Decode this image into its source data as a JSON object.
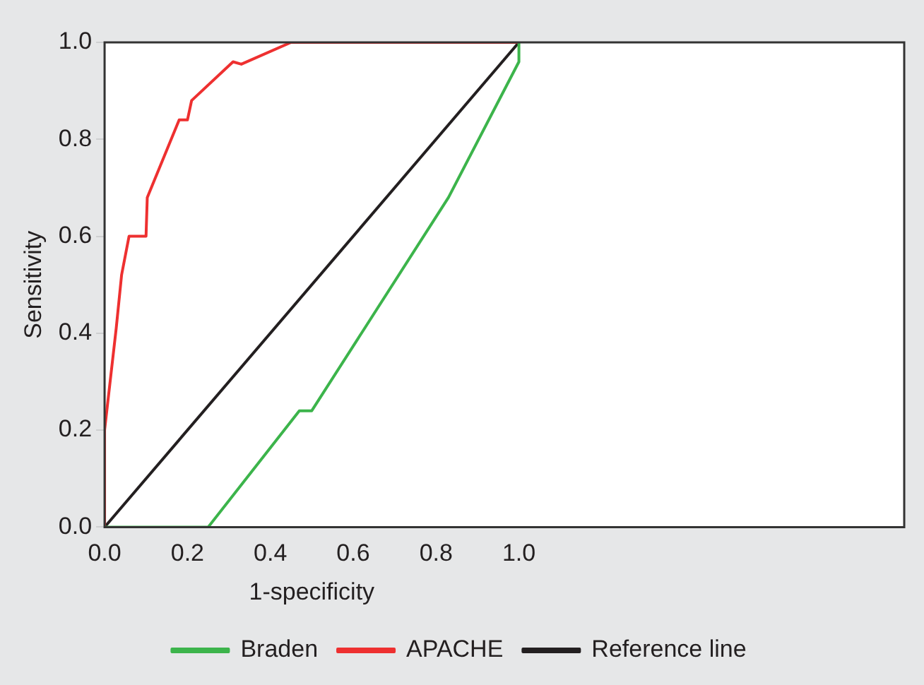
{
  "chart_data": {
    "type": "line",
    "xlabel": "1-specificity",
    "ylabel": "Sensitivity",
    "xlim": [
      0,
      1.93
    ],
    "ylim": [
      0,
      1
    ],
    "xticks": [
      {
        "value": 0,
        "label": "0.0"
      },
      0.2,
      0.4,
      0.6,
      0.8,
      {
        "value": 1,
        "label": "1.0"
      }
    ],
    "yticks": [
      {
        "value": 0,
        "label": "0.0"
      },
      0.2,
      0.4,
      0.6,
      0.8,
      {
        "value": 1,
        "label": "1.0"
      }
    ],
    "grid": false,
    "legend": "bottom",
    "marker": "none",
    "line_style": "solid",
    "series": [
      {
        "name": "Braden",
        "color": "#3cb44b",
        "x": [
          0,
          0.25,
          0.47,
          0.5,
          0.83,
          1,
          1
        ],
        "values": [
          0,
          0,
          0.24,
          0.24,
          0.68,
          0.96,
          1
        ]
      },
      {
        "name": "APACHE",
        "color": "#ee3030",
        "x": [
          0,
          0,
          0.028,
          0.041,
          0.059,
          0.1,
          0.103,
          0.18,
          0.2,
          0.21,
          0.31,
          0.33,
          0.45,
          1
        ],
        "values": [
          0,
          0.2,
          0.41,
          0.52,
          0.6,
          0.6,
          0.68,
          0.84,
          0.84,
          0.88,
          0.96,
          0.955,
          1,
          1
        ]
      },
      {
        "name": "Reference line",
        "color": "#231f20",
        "x": [
          0,
          1
        ],
        "values": [
          0,
          1
        ]
      }
    ]
  }
}
